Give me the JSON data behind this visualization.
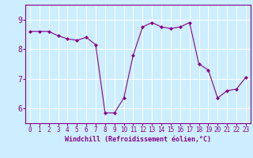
{
  "x": [
    0,
    1,
    2,
    3,
    4,
    5,
    6,
    7,
    8,
    9,
    10,
    11,
    12,
    13,
    14,
    15,
    16,
    17,
    18,
    19,
    20,
    21,
    22,
    23
  ],
  "y": [
    8.6,
    8.6,
    8.6,
    8.45,
    8.35,
    8.3,
    8.4,
    8.15,
    5.85,
    5.85,
    6.35,
    7.8,
    8.75,
    8.9,
    8.75,
    8.7,
    8.75,
    8.9,
    7.5,
    7.3,
    6.35,
    6.6,
    6.65,
    7.05
  ],
  "line_color": "#880088",
  "marker": "D",
  "markersize": 2,
  "linewidth": 0.8,
  "xlabel": "Windchill (Refroidissement éolien,°C)",
  "xlabel_fontsize": 6,
  "bg_color": "#cceeff",
  "grid_color": "#ffffff",
  "tick_color": "#880088",
  "label_color": "#880088",
  "ylim": [
    5.5,
    9.5
  ],
  "yticks": [
    6,
    7,
    8,
    9
  ],
  "xlim": [
    -0.5,
    23.5
  ],
  "xtick_labels": [
    "0",
    "1",
    "2",
    "3",
    "4",
    "5",
    "6",
    "7",
    "8",
    "9",
    "10",
    "11",
    "12",
    "13",
    "14",
    "15",
    "16",
    "17",
    "18",
    "19",
    "20",
    "21",
    "22",
    "23"
  ]
}
